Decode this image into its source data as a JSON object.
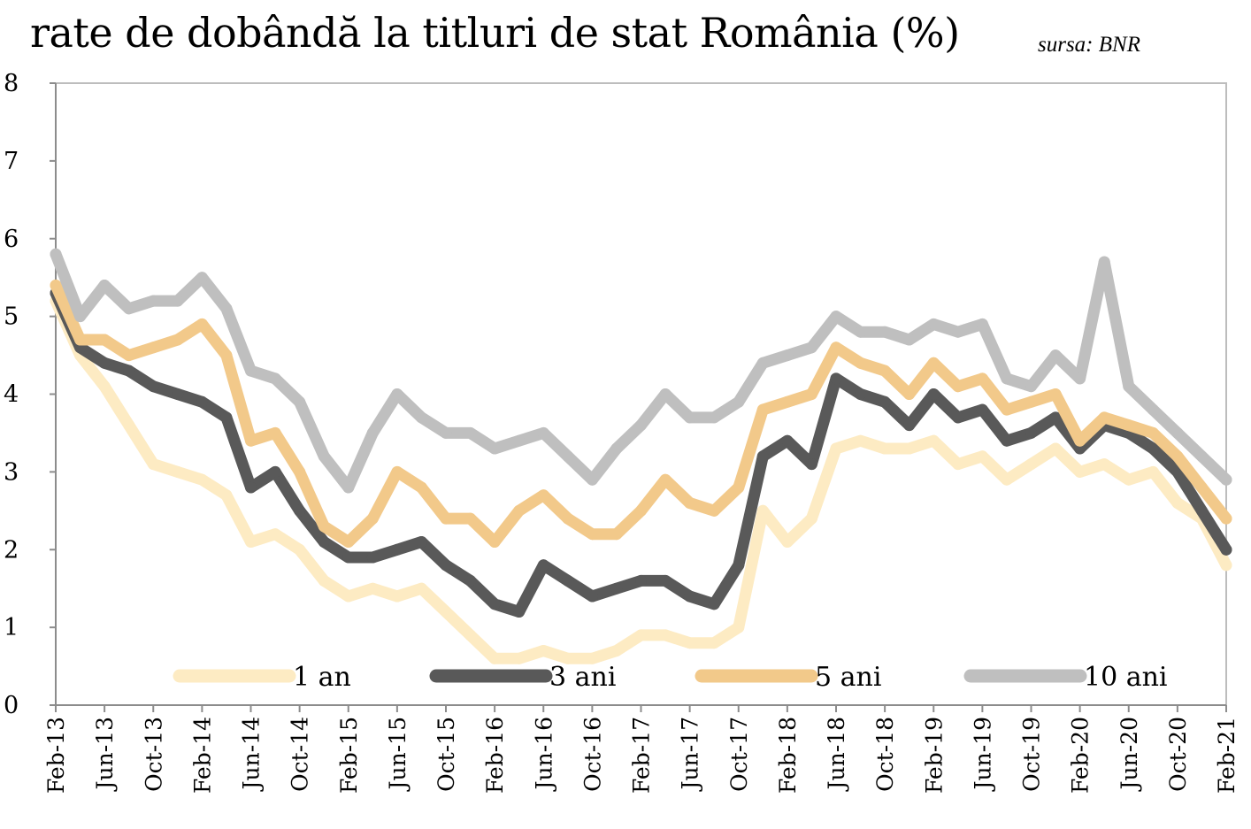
{
  "title": "rate de dobândă la titluri de stat România (%)",
  "source": "sursa: BNR",
  "chart_data": {
    "type": "line",
    "title": "rate de dobândă la titluri de stat România (%)",
    "xlabel": "",
    "ylabel": "",
    "ylim": [
      0,
      8
    ],
    "yticks": [
      0,
      1,
      2,
      3,
      4,
      5,
      6,
      7,
      8
    ],
    "grid": false,
    "legend_position": "bottom",
    "x_tick_labels": [
      "Feb-13",
      "Jun-13",
      "Oct-13",
      "Feb-14",
      "Jun-14",
      "Oct-14",
      "Feb-15",
      "Jun-15",
      "Oct-15",
      "Feb-16",
      "Jun-16",
      "Oct-16",
      "Feb-17",
      "Jun-17",
      "Oct-17",
      "Feb-18",
      "Jun-18",
      "Oct-18",
      "Feb-19",
      "Jun-19",
      "Oct-19",
      "Feb-20",
      "Jun-20",
      "Oct-20",
      "Feb-21"
    ],
    "x": [
      "2013-02",
      "2013-04",
      "2013-06",
      "2013-08",
      "2013-10",
      "2013-12",
      "2014-02",
      "2014-04",
      "2014-06",
      "2014-08",
      "2014-10",
      "2014-12",
      "2015-02",
      "2015-04",
      "2015-06",
      "2015-08",
      "2015-10",
      "2015-12",
      "2016-02",
      "2016-04",
      "2016-06",
      "2016-08",
      "2016-10",
      "2016-12",
      "2017-02",
      "2017-04",
      "2017-06",
      "2017-08",
      "2017-10",
      "2017-12",
      "2018-02",
      "2018-04",
      "2018-06",
      "2018-08",
      "2018-10",
      "2018-12",
      "2019-02",
      "2019-04",
      "2019-06",
      "2019-08",
      "2019-10",
      "2019-12",
      "2020-02",
      "2020-04",
      "2020-06",
      "2020-08",
      "2020-10",
      "2020-12",
      "2021-02"
    ],
    "series": [
      {
        "name": "1 an",
        "color": "#fdebc3",
        "values": [
          5.2,
          4.5,
          4.1,
          3.6,
          3.1,
          3.0,
          2.9,
          2.7,
          2.1,
          2.2,
          2.0,
          1.6,
          1.4,
          1.5,
          1.4,
          1.5,
          1.2,
          0.9,
          0.6,
          0.6,
          0.7,
          0.6,
          0.6,
          0.7,
          0.9,
          0.9,
          0.8,
          0.8,
          1.0,
          2.5,
          2.1,
          2.4,
          3.3,
          3.4,
          3.3,
          3.3,
          3.4,
          3.1,
          3.2,
          2.9,
          3.1,
          3.3,
          3.0,
          3.1,
          2.9,
          3.0,
          2.6,
          2.4,
          1.8
        ]
      },
      {
        "name": "3 ani",
        "color": "#595959",
        "values": [
          5.3,
          4.6,
          4.4,
          4.3,
          4.1,
          4.0,
          3.9,
          3.7,
          2.8,
          3.0,
          2.5,
          2.1,
          1.9,
          1.9,
          2.0,
          2.1,
          1.8,
          1.6,
          1.3,
          1.2,
          1.8,
          1.6,
          1.4,
          1.5,
          1.6,
          1.6,
          1.4,
          1.3,
          1.8,
          3.2,
          3.4,
          3.1,
          4.2,
          4.0,
          3.9,
          3.6,
          4.0,
          3.7,
          3.8,
          3.4,
          3.5,
          3.7,
          3.3,
          3.6,
          3.5,
          3.3,
          3.0,
          2.5,
          2.0
        ]
      },
      {
        "name": "5 ani",
        "color": "#f2c98a",
        "values": [
          5.4,
          4.7,
          4.7,
          4.5,
          4.6,
          4.7,
          4.9,
          4.5,
          3.4,
          3.5,
          3.0,
          2.3,
          2.1,
          2.4,
          3.0,
          2.8,
          2.4,
          2.4,
          2.1,
          2.5,
          2.7,
          2.4,
          2.2,
          2.2,
          2.5,
          2.9,
          2.6,
          2.5,
          2.8,
          3.8,
          3.9,
          4.0,
          4.6,
          4.4,
          4.3,
          4.0,
          4.4,
          4.1,
          4.2,
          3.8,
          3.9,
          4.0,
          3.4,
          3.7,
          3.6,
          3.5,
          3.2,
          2.8,
          2.4
        ]
      },
      {
        "name": "10 ani",
        "color": "#bfbfbf",
        "values": [
          5.8,
          5.0,
          5.4,
          5.1,
          5.2,
          5.2,
          5.5,
          5.1,
          4.3,
          4.2,
          3.9,
          3.2,
          2.8,
          3.5,
          4.0,
          3.7,
          3.5,
          3.5,
          3.3,
          3.4,
          3.5,
          3.2,
          2.9,
          3.3,
          3.6,
          4.0,
          3.7,
          3.7,
          3.9,
          4.4,
          4.5,
          4.6,
          5.0,
          4.8,
          4.8,
          4.7,
          4.9,
          4.8,
          4.9,
          4.2,
          4.1,
          4.5,
          4.2,
          5.7,
          4.1,
          3.8,
          3.5,
          3.2,
          2.9
        ]
      }
    ]
  }
}
